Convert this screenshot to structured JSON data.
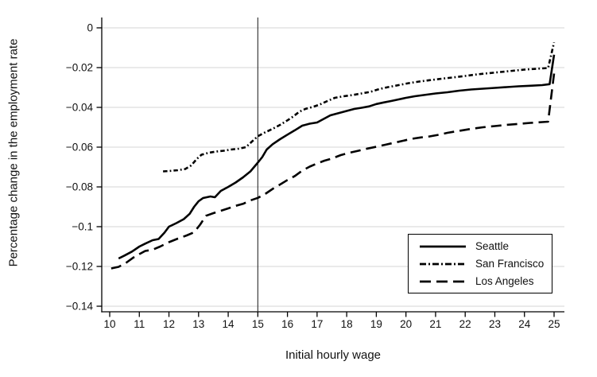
{
  "figure": {
    "background": "#ffffff"
  },
  "chart_data": {
    "type": "line",
    "title": "",
    "xlabel": "Initial hourly wage",
    "ylabel": "Percentage change in the employment rate",
    "xlim": [
      9.73,
      25.35
    ],
    "ylim": [
      -0.1428,
      0.0052
    ],
    "grid": "horizontal",
    "legend_position": "bottom-right",
    "reference_line_x": 15,
    "x_ticks": [
      10,
      11,
      12,
      13,
      14,
      15,
      16,
      17,
      18,
      19,
      20,
      21,
      22,
      23,
      24,
      25
    ],
    "y_ticks": [
      {
        "value": 0,
        "label": "0"
      },
      {
        "value": -0.02,
        "label": "−0.02"
      },
      {
        "value": -0.04,
        "label": "−0.04"
      },
      {
        "value": -0.06,
        "label": "−0.06"
      },
      {
        "value": -0.08,
        "label": "−0.08"
      },
      {
        "value": -0.1,
        "label": "−0.1"
      },
      {
        "value": -0.12,
        "label": "−0.12"
      },
      {
        "value": -0.14,
        "label": "−0.14"
      }
    ],
    "colors": {
      "line": "#000000",
      "grid": "#d6d6d6",
      "axis": "#000000",
      "text": "#111111"
    },
    "series": [
      {
        "name": "Seattle",
        "dash": "solid",
        "points": [
          [
            10.3,
            -0.116
          ],
          [
            10.5,
            -0.1145
          ],
          [
            10.75,
            -0.1125
          ],
          [
            11.0,
            -0.11
          ],
          [
            11.2,
            -0.1085
          ],
          [
            11.45,
            -0.1068
          ],
          [
            11.65,
            -0.1062
          ],
          [
            11.85,
            -0.103
          ],
          [
            12.0,
            -0.1
          ],
          [
            12.25,
            -0.0982
          ],
          [
            12.5,
            -0.0962
          ],
          [
            12.7,
            -0.0935
          ],
          [
            12.85,
            -0.09
          ],
          [
            13.0,
            -0.0872
          ],
          [
            13.15,
            -0.0856
          ],
          [
            13.4,
            -0.0848
          ],
          [
            13.55,
            -0.0852
          ],
          [
            13.75,
            -0.082
          ],
          [
            14.0,
            -0.08
          ],
          [
            14.25,
            -0.0778
          ],
          [
            14.5,
            -0.0752
          ],
          [
            14.75,
            -0.0722
          ],
          [
            15.0,
            -0.0678
          ],
          [
            15.15,
            -0.065
          ],
          [
            15.3,
            -0.0612
          ],
          [
            15.5,
            -0.0585
          ],
          [
            15.75,
            -0.056
          ],
          [
            16.0,
            -0.0537
          ],
          [
            16.25,
            -0.0515
          ],
          [
            16.5,
            -0.0492
          ],
          [
            16.75,
            -0.0482
          ],
          [
            17.0,
            -0.0476
          ],
          [
            17.2,
            -0.046
          ],
          [
            17.45,
            -0.044
          ],
          [
            17.75,
            -0.0428
          ],
          [
            18.0,
            -0.0418
          ],
          [
            18.25,
            -0.0408
          ],
          [
            18.5,
            -0.0402
          ],
          [
            18.75,
            -0.0395
          ],
          [
            19.0,
            -0.0383
          ],
          [
            19.25,
            -0.0375
          ],
          [
            19.5,
            -0.0368
          ],
          [
            19.75,
            -0.036
          ],
          [
            20.0,
            -0.0352
          ],
          [
            20.3,
            -0.0344
          ],
          [
            20.6,
            -0.0338
          ],
          [
            21.0,
            -0.033
          ],
          [
            21.4,
            -0.0324
          ],
          [
            21.8,
            -0.0316
          ],
          [
            22.2,
            -0.031
          ],
          [
            22.6,
            -0.0306
          ],
          [
            23.0,
            -0.0302
          ],
          [
            23.4,
            -0.0298
          ],
          [
            23.8,
            -0.0294
          ],
          [
            24.2,
            -0.0291
          ],
          [
            24.6,
            -0.0288
          ],
          [
            24.85,
            -0.0283
          ],
          [
            25.0,
            -0.0135
          ]
        ]
      },
      {
        "name": "San Francisco",
        "dash": "dash-dot",
        "points": [
          [
            11.8,
            -0.0722
          ],
          [
            12.0,
            -0.072
          ],
          [
            12.3,
            -0.0716
          ],
          [
            12.55,
            -0.071
          ],
          [
            12.75,
            -0.0692
          ],
          [
            12.95,
            -0.0658
          ],
          [
            13.1,
            -0.0638
          ],
          [
            13.35,
            -0.0628
          ],
          [
            13.6,
            -0.0622
          ],
          [
            13.85,
            -0.0618
          ],
          [
            14.1,
            -0.0612
          ],
          [
            14.35,
            -0.0608
          ],
          [
            14.6,
            -0.06
          ],
          [
            14.8,
            -0.0572
          ],
          [
            15.0,
            -0.0545
          ],
          [
            15.25,
            -0.0525
          ],
          [
            15.5,
            -0.0508
          ],
          [
            15.75,
            -0.0488
          ],
          [
            16.0,
            -0.0465
          ],
          [
            16.2,
            -0.0445
          ],
          [
            16.4,
            -0.0422
          ],
          [
            16.6,
            -0.0408
          ],
          [
            16.85,
            -0.0398
          ],
          [
            17.1,
            -0.0385
          ],
          [
            17.35,
            -0.0368
          ],
          [
            17.6,
            -0.0352
          ],
          [
            17.9,
            -0.0344
          ],
          [
            18.2,
            -0.0338
          ],
          [
            18.5,
            -0.033
          ],
          [
            18.8,
            -0.0322
          ],
          [
            19.1,
            -0.0308
          ],
          [
            19.4,
            -0.0298
          ],
          [
            19.75,
            -0.0288
          ],
          [
            20.1,
            -0.0278
          ],
          [
            20.45,
            -0.027
          ],
          [
            20.8,
            -0.0263
          ],
          [
            21.2,
            -0.0256
          ],
          [
            21.6,
            -0.0249
          ],
          [
            22.0,
            -0.0242
          ],
          [
            22.4,
            -0.0234
          ],
          [
            22.8,
            -0.0228
          ],
          [
            23.2,
            -0.0222
          ],
          [
            23.6,
            -0.0216
          ],
          [
            24.0,
            -0.021
          ],
          [
            24.4,
            -0.0206
          ],
          [
            24.8,
            -0.0202
          ],
          [
            25.0,
            -0.0073
          ]
        ]
      },
      {
        "name": "Los Angeles",
        "dash": "long-dash",
        "points": [
          [
            10.05,
            -0.121
          ],
          [
            10.3,
            -0.1202
          ],
          [
            10.55,
            -0.1182
          ],
          [
            10.8,
            -0.1155
          ],
          [
            11.0,
            -0.1138
          ],
          [
            11.2,
            -0.1122
          ],
          [
            11.45,
            -0.1116
          ],
          [
            11.7,
            -0.11
          ],
          [
            12.0,
            -0.1078
          ],
          [
            12.3,
            -0.106
          ],
          [
            12.6,
            -0.1044
          ],
          [
            12.85,
            -0.1028
          ],
          [
            13.05,
            -0.099
          ],
          [
            13.25,
            -0.0945
          ],
          [
            13.5,
            -0.0932
          ],
          [
            13.75,
            -0.092
          ],
          [
            14.0,
            -0.0908
          ],
          [
            14.25,
            -0.0895
          ],
          [
            14.5,
            -0.0885
          ],
          [
            14.75,
            -0.0868
          ],
          [
            15.0,
            -0.0855
          ],
          [
            15.25,
            -0.0835
          ],
          [
            15.5,
            -0.081
          ],
          [
            15.75,
            -0.0788
          ],
          [
            16.0,
            -0.0765
          ],
          [
            16.25,
            -0.0745
          ],
          [
            16.5,
            -0.0718
          ],
          [
            16.75,
            -0.0698
          ],
          [
            17.0,
            -0.0682
          ],
          [
            17.25,
            -0.0668
          ],
          [
            17.5,
            -0.0657
          ],
          [
            17.8,
            -0.064
          ],
          [
            18.1,
            -0.0628
          ],
          [
            18.4,
            -0.0618
          ],
          [
            18.7,
            -0.0607
          ],
          [
            19.0,
            -0.0598
          ],
          [
            19.3,
            -0.0588
          ],
          [
            19.6,
            -0.0578
          ],
          [
            19.9,
            -0.0568
          ],
          [
            20.2,
            -0.0558
          ],
          [
            20.5,
            -0.0551
          ],
          [
            20.8,
            -0.0546
          ],
          [
            21.1,
            -0.0538
          ],
          [
            21.4,
            -0.0528
          ],
          [
            21.8,
            -0.0518
          ],
          [
            22.2,
            -0.0508
          ],
          [
            22.6,
            -0.05
          ],
          [
            23.0,
            -0.0494
          ],
          [
            23.4,
            -0.0488
          ],
          [
            23.8,
            -0.0483
          ],
          [
            24.2,
            -0.0478
          ],
          [
            24.6,
            -0.0474
          ],
          [
            24.8,
            -0.0472
          ],
          [
            25.0,
            -0.023
          ]
        ]
      }
    ]
  }
}
